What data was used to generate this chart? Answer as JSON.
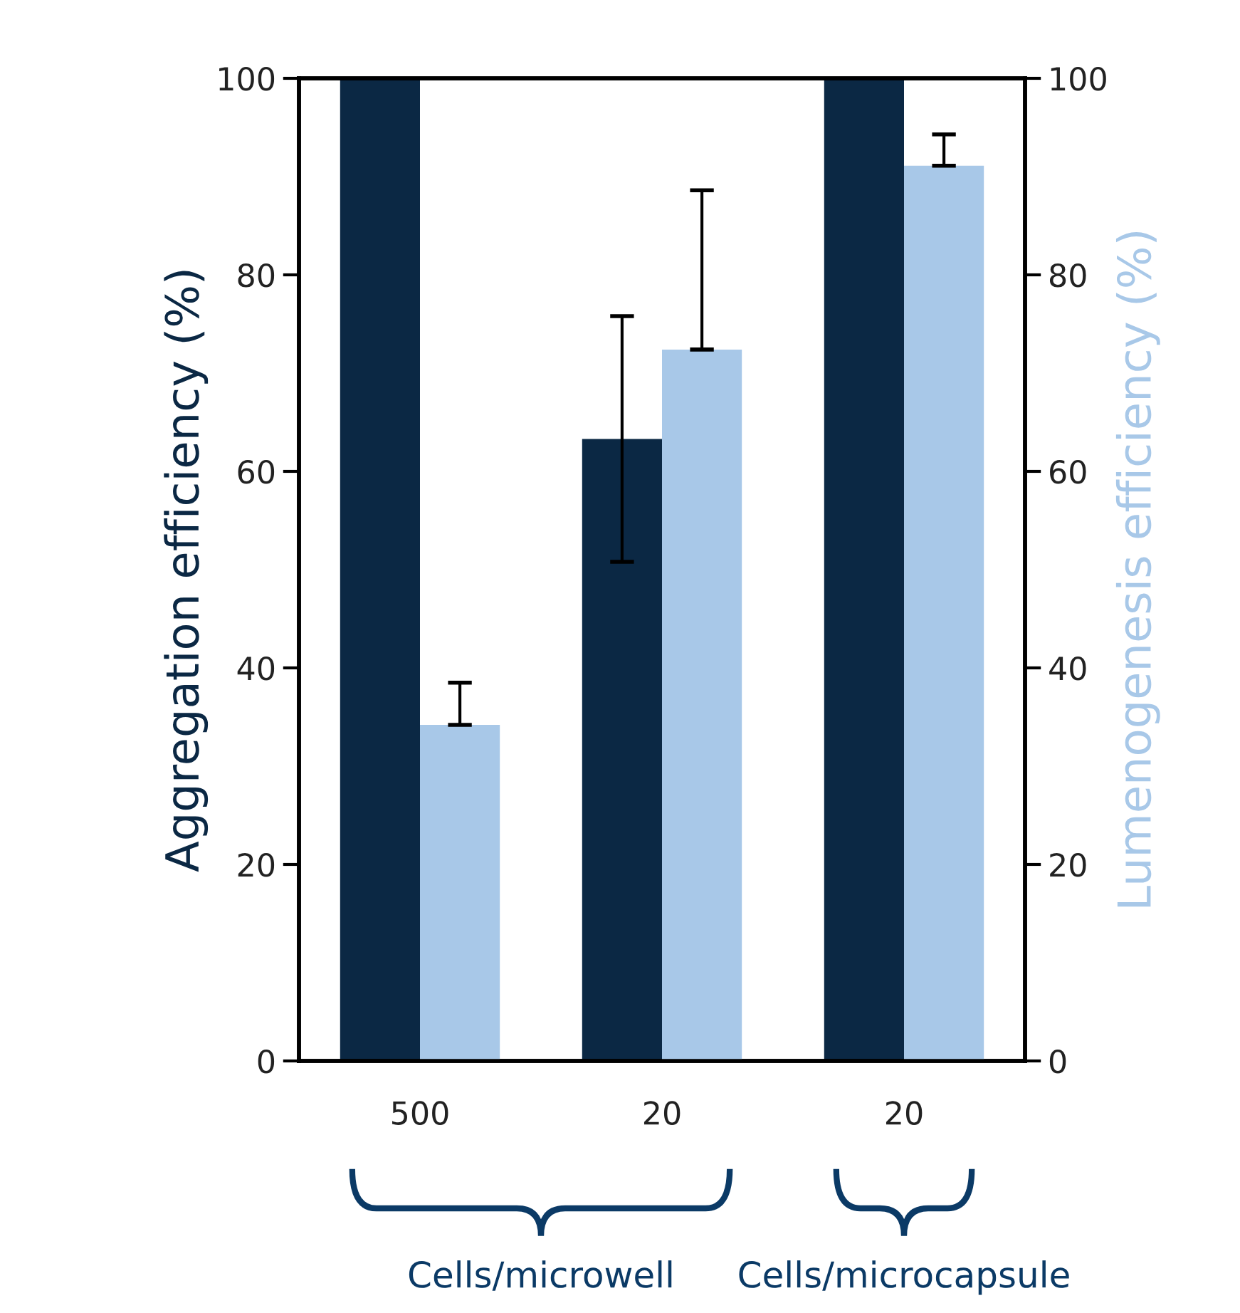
{
  "chart_data": {
    "type": "bar",
    "categories": [
      "500",
      "20",
      "20"
    ],
    "series": [
      {
        "color": "#0b2844",
        "values": [
          100,
          63.3,
          100
        ],
        "errors": [
          null,
          [
            50.8,
            75.8
          ],
          null
        ]
      },
      {
        "color": "#a8c8e8",
        "values": [
          34.2,
          72.4,
          91.1
        ],
        "errors": [
          [
            34.2,
            38.5
          ],
          [
            72.4,
            88.6
          ],
          [
            91.1,
            94.3
          ]
        ],
        "axis": "y2"
      }
    ],
    "ylabel": "Aggregation efficiency (%)",
    "y2label": "Lumenogenesis efficiency (%)",
    "ylim": [
      0,
      100
    ],
    "yticks": [
      0,
      20,
      40,
      60,
      80,
      100
    ],
    "y2lim": [
      0,
      100
    ],
    "y2ticks": [
      0,
      20,
      40,
      60,
      80,
      100
    ],
    "annotations": [
      "Cells/microwell",
      "Cells/microcapsule"
    ],
    "grid": false,
    "legend": false
  }
}
